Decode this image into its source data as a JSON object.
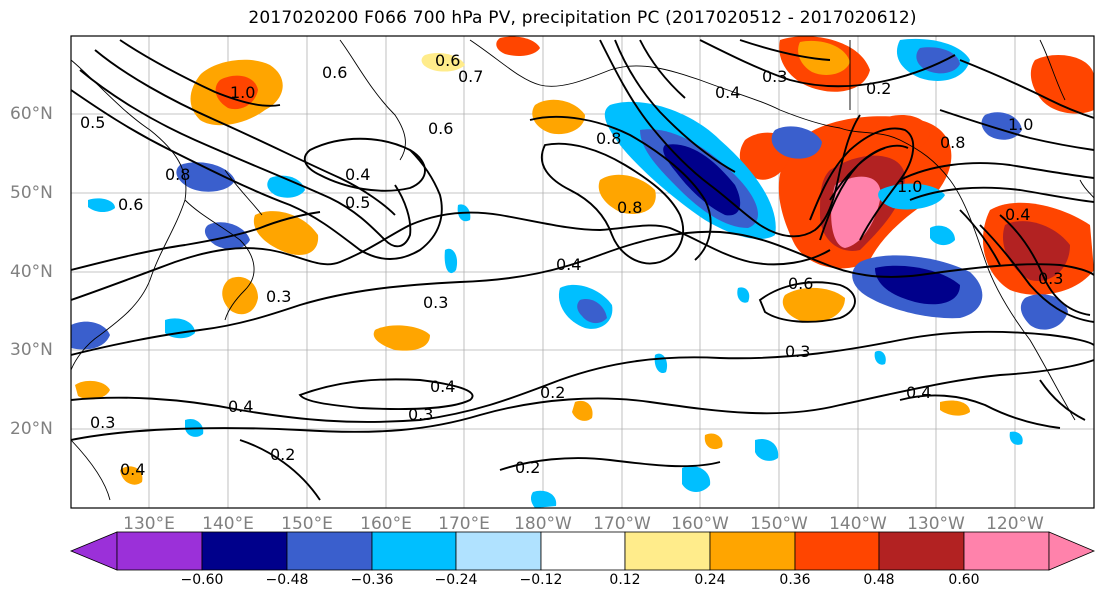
{
  "title": "2017020200 F066 700 hPa PV, precipitation PC (2017020512 - 2017020612)",
  "lat_labels": [
    "60°N",
    "50°N",
    "40°N",
    "30°N",
    "20°N"
  ],
  "lon_labels": [
    "130°E",
    "140°E",
    "150°E",
    "160°E",
    "170°E",
    "180°W",
    "170°W",
    "160°W",
    "150°W",
    "140°W",
    "130°W",
    "120°W"
  ],
  "colorbar": {
    "ticks": [
      "−0.60",
      "−0.48",
      "−0.36",
      "−0.24",
      "−0.12",
      "0.12",
      "0.24",
      "0.36",
      "0.48",
      "0.60"
    ],
    "colors": [
      "#9b30d9",
      "#00008b",
      "#3a5fcd",
      "#00bfff",
      "#b0e2ff",
      "#ffffff",
      "#ffec8b",
      "#ffa500",
      "#ff4500",
      "#b22222",
      "#ff82ab"
    ]
  },
  "contour_labels": [
    "0.6",
    "0.4",
    "0.5",
    "0.3",
    "0.2",
    "0.8",
    "1.0",
    "0.7"
  ]
}
